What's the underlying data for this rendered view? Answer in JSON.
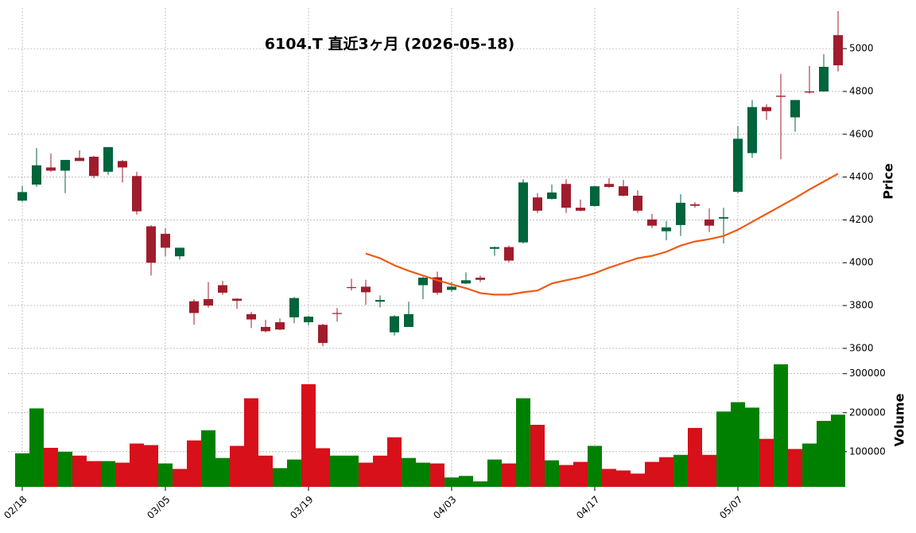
{
  "chart_data": {
    "type": "candlestick",
    "title": "6104.T  直近3ヶ月  (2026-05-18)",
    "price_label": "Price",
    "volume_label": "Volume",
    "up_color": "#00643c",
    "down_color": "#a01c2c",
    "open": [
      4290,
      4365,
      4445,
      4430,
      4490,
      4495,
      4425,
      4475,
      4405,
      4170,
      4135,
      4030,
      3820,
      3830,
      3895,
      3832,
      3760,
      3700,
      3722,
      3745,
      3722,
      3710,
      3765,
      3886,
      3888,
      3818,
      3675,
      3700,
      3895,
      3932,
      3873,
      3903,
      3930,
      4065,
      4073,
      4095,
      4305,
      4298,
      4368,
      4257,
      4265,
      4368,
      4357,
      4313,
      4202,
      4147,
      4176,
      4273,
      4202,
      4206,
      4331,
      4512,
      4727,
      4780,
      4679,
      4800,
      4800,
      5063
    ],
    "high": [
      4360,
      4535,
      4510,
      4480,
      4525,
      4500,
      4540,
      4480,
      4425,
      4175,
      4160,
      4070,
      3830,
      3910,
      3915,
      3835,
      3770,
      3733,
      3740,
      3840,
      3752,
      3715,
      3788,
      3925,
      3920,
      3847,
      3755,
      3818,
      3935,
      3958,
      3910,
      3955,
      3940,
      4075,
      4080,
      4390,
      4325,
      4365,
      4390,
      4295,
      4360,
      4395,
      4387,
      4338,
      4228,
      4195,
      4320,
      4283,
      4254,
      4257,
      4638,
      4760,
      4740,
      4882,
      4760,
      4919,
      4974,
      5175
    ],
    "low": [
      4285,
      4355,
      4425,
      4325,
      4475,
      4395,
      4410,
      4375,
      4225,
      3940,
      4030,
      4015,
      3710,
      3790,
      3850,
      3785,
      3695,
      3675,
      3685,
      3718,
      3707,
      3610,
      3725,
      3870,
      3803,
      3792,
      3660,
      3700,
      3830,
      3850,
      3865,
      3900,
      3910,
      4032,
      4002,
      4090,
      4232,
      4295,
      4232,
      4240,
      4262,
      4350,
      4310,
      4232,
      4162,
      4105,
      4125,
      4257,
      4143,
      4090,
      4325,
      4490,
      4667,
      4483,
      4612,
      4790,
      4798,
      4893
    ],
    "close": [
      4330,
      4455,
      4430,
      4480,
      4475,
      4405,
      4540,
      4445,
      4240,
      4000,
      4070,
      4070,
      3765,
      3800,
      3860,
      3822,
      3735,
      3680,
      3688,
      3835,
      3748,
      3625,
      3762,
      3882,
      3862,
      3826,
      3750,
      3760,
      3930,
      3860,
      3888,
      3918,
      3920,
      4073,
      4010,
      4375,
      4243,
      4328,
      4257,
      4243,
      4357,
      4354,
      4313,
      4243,
      4173,
      4165,
      4280,
      4266,
      4173,
      4213,
      4579,
      4727,
      4708,
      4775,
      4760,
      4795,
      4915,
      4922
    ],
    "ma": {
      "color": "#f05a14",
      "values": [
        null,
        null,
        null,
        null,
        null,
        null,
        null,
        null,
        null,
        null,
        null,
        null,
        null,
        null,
        null,
        null,
        null,
        null,
        null,
        null,
        null,
        null,
        null,
        null,
        4043,
        4021,
        3988,
        3962,
        3940,
        3918,
        3899,
        3881,
        3858,
        3851,
        3851,
        3862,
        3870,
        3903,
        3918,
        3932,
        3951,
        3977,
        3999,
        4021,
        4032,
        4051,
        4080,
        4099,
        4110,
        4125,
        4154,
        4191,
        4228,
        4265,
        4302,
        4342,
        4379,
        4416
      ]
    },
    "volume": {
      "values": [
        96000,
        211000,
        110000,
        100000,
        90000,
        76000,
        76000,
        72000,
        121000,
        117000,
        70000,
        56000,
        129000,
        155000,
        84000,
        115000,
        237000,
        90000,
        58000,
        80000,
        273000,
        109000,
        90000,
        90000,
        72000,
        90000,
        137000,
        84000,
        72000,
        70000,
        34000,
        38000,
        24000,
        80000,
        70000,
        237000,
        169000,
        78000,
        66000,
        74000,
        115000,
        56000,
        52000,
        44000,
        74000,
        86000,
        92000,
        161000,
        92000,
        203000,
        227000,
        213000,
        133000,
        324000,
        107000,
        121000,
        179000,
        195000
      ],
      "colors": [
        "#008000",
        "#008000",
        "#d7101a",
        "#008000",
        "#d7101a",
        "#d7101a",
        "#008000",
        "#d7101a",
        "#d7101a",
        "#d7101a",
        "#008000",
        "#d7101a",
        "#d7101a",
        "#008000",
        "#008000",
        "#d7101a",
        "#d7101a",
        "#d7101a",
        "#008000",
        "#008000",
        "#d7101a",
        "#d7101a",
        "#008000",
        "#008000",
        "#d7101a",
        "#d7101a",
        "#d7101a",
        "#008000",
        "#008000",
        "#d7101a",
        "#008000",
        "#008000",
        "#008000",
        "#008000",
        "#d7101a",
        "#008000",
        "#d7101a",
        "#008000",
        "#d7101a",
        "#d7101a",
        "#008000",
        "#d7101a",
        "#d7101a",
        "#d7101a",
        "#d7101a",
        "#d7101a",
        "#008000",
        "#d7101a",
        "#d7101a",
        "#008000",
        "#008000",
        "#008000",
        "#d7101a",
        "#008000",
        "#d7101a",
        "#008000",
        "#008000",
        "#008000"
      ]
    },
    "xticks": [
      {
        "value": 0,
        "label": "02/18"
      },
      {
        "value": 10,
        "label": "03/05"
      },
      {
        "value": 20,
        "label": "03/19"
      },
      {
        "value": 30,
        "label": "04/03"
      },
      {
        "value": 40,
        "label": "04/17"
      },
      {
        "value": 50,
        "label": "05/07"
      }
    ],
    "ylim": [
      3555,
      5190
    ],
    "yticks": [
      3600,
      3800,
      4000,
      4200,
      4400,
      4600,
      4800,
      5000
    ],
    "vlim": [
      10000,
      330000
    ],
    "vticks": [
      100000,
      200000,
      300000
    ],
    "grid": true
  }
}
